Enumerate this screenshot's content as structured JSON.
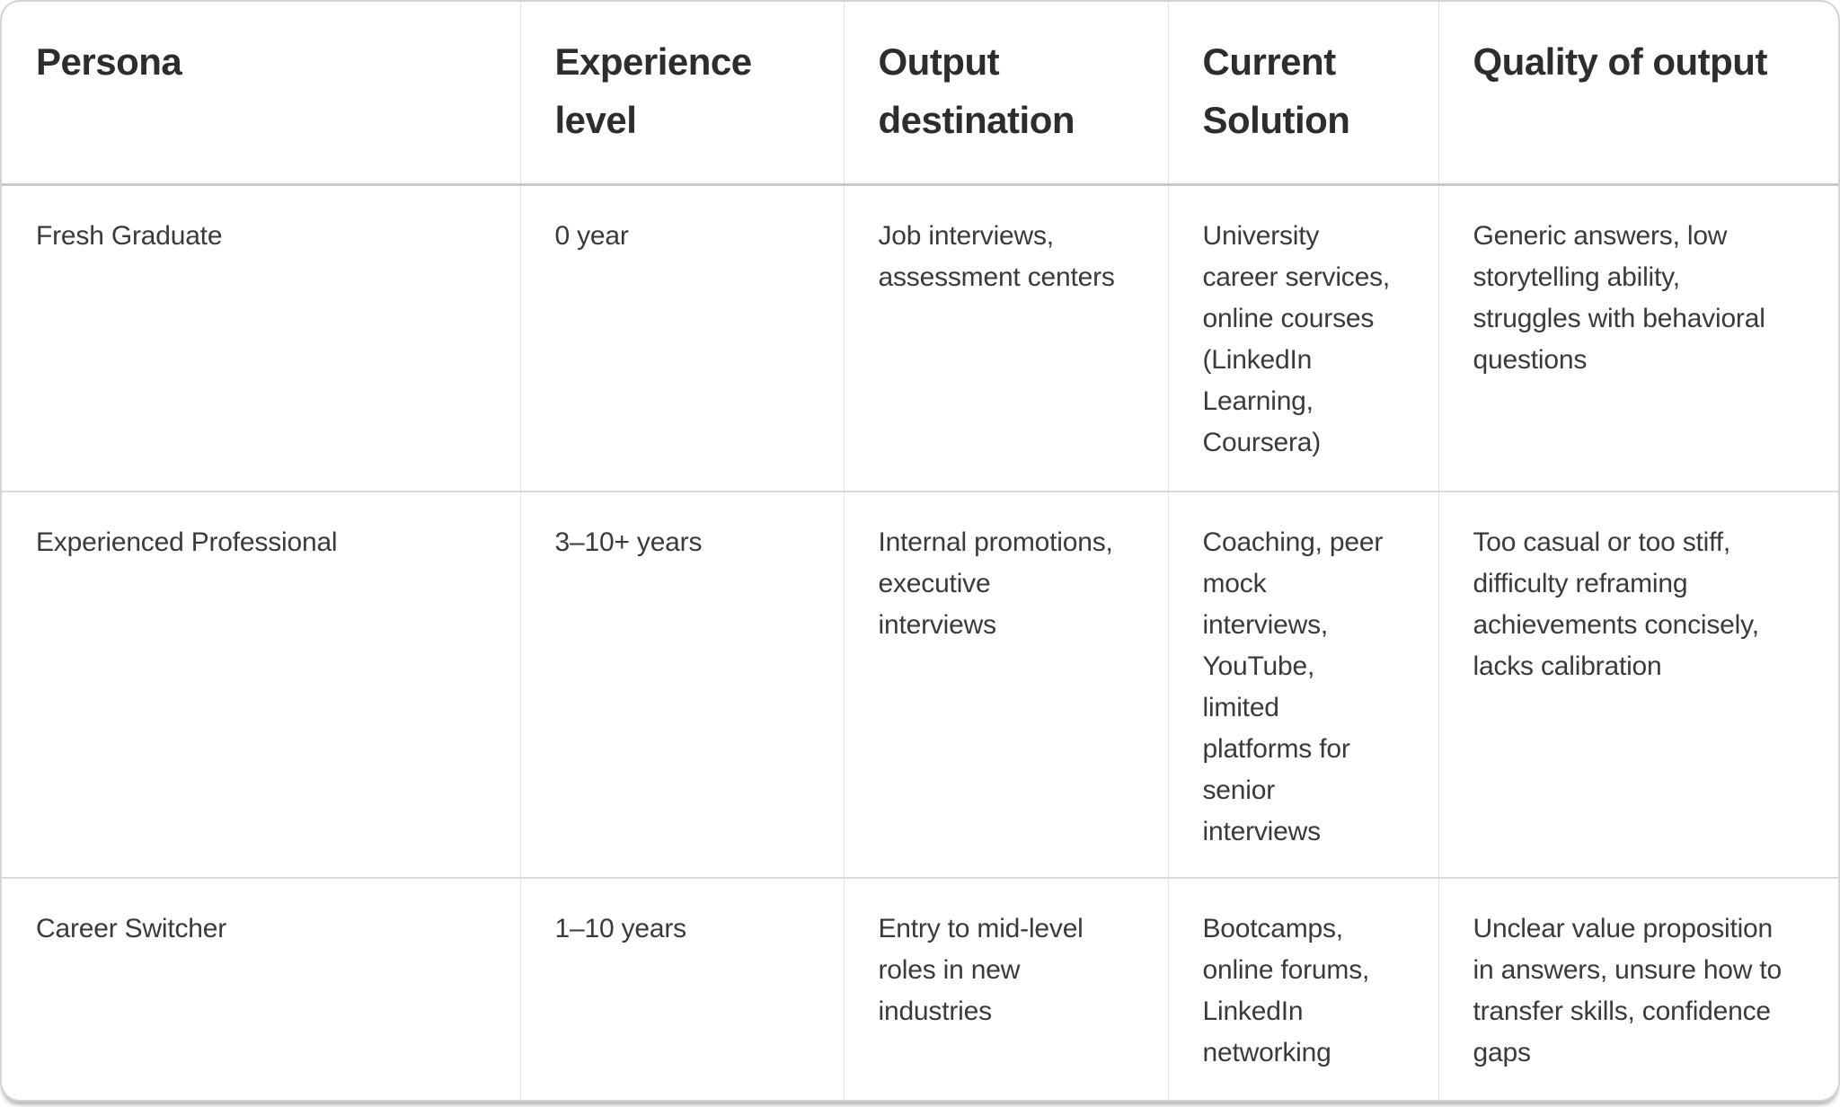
{
  "colors": {
    "card_background": "#ffffff",
    "card_border": "#d3d3d3",
    "header_text": "#2d2d2d",
    "body_text": "#3a3a3a",
    "grid_line_vertical": "#e0e0e0",
    "grid_line_horizontal": "#d9d9d9",
    "header_divider": "#c9c9c9"
  },
  "table": {
    "columns": [
      {
        "label": "Persona"
      },
      {
        "label": "Experience\nlevel"
      },
      {
        "label": "Output\ndestination"
      },
      {
        "label": "Current\nSolution"
      },
      {
        "label": "Quality of output"
      }
    ],
    "rows": [
      {
        "cells": [
          "Fresh Graduate",
          "0 year",
          "Job interviews,\nassessment centers",
          "University\ncareer services,\nonline courses\n(LinkedIn\nLearning,\nCoursera)",
          "Generic answers, low\nstorytelling ability,\nstruggles with behavioral\nquestions"
        ]
      },
      {
        "cells": [
          "Experienced Professional",
          "3–10+ years",
          "Internal promotions,\nexecutive\ninterviews",
          "Coaching, peer\nmock\ninterviews,\nYouTube,\nlimited\nplatforms for\nsenior\ninterviews",
          "Too casual or too stiff,\ndifficulty reframing\nachievements concisely,\nlacks calibration"
        ]
      },
      {
        "cells": [
          "Career Switcher",
          "1–10 years",
          "Entry to mid-level\nroles in new\nindustries",
          "Bootcamps,\nonline forums,\nLinkedIn\nnetworking",
          "Unclear value proposition\nin answers, unsure how to\ntransfer skills, confidence\ngaps"
        ]
      }
    ]
  }
}
